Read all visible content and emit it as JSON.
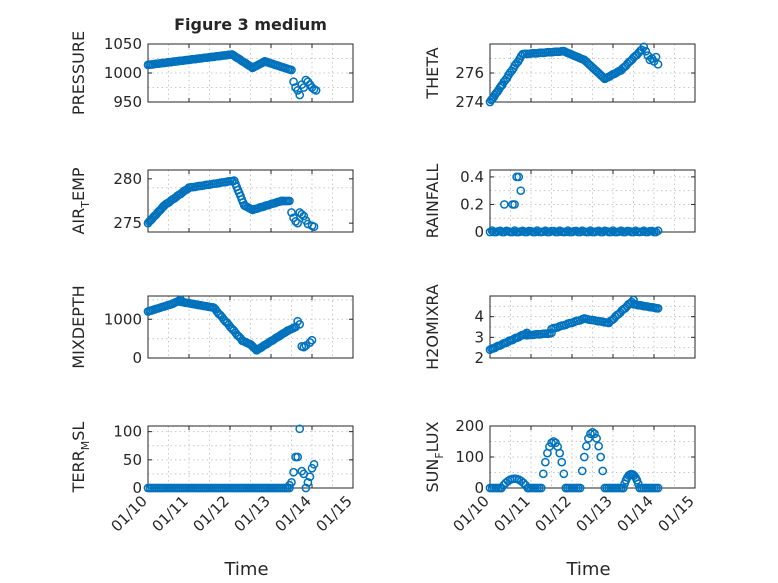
{
  "figure": {
    "title": "Figure 3 medium",
    "bottom_xlabel": "Time",
    "marker_color": "#0072BD"
  },
  "chart_data": [
    {
      "id": "pressure",
      "type": "scatter",
      "title": "Figure 3 medium",
      "ylabel": "PRESSURE",
      "ylabel_sub": null,
      "xlim": [
        0,
        5
      ],
      "ylim": [
        950,
        1050
      ],
      "yticks": [
        950,
        1000,
        1050
      ],
      "grid": true,
      "xticklabels_visible": false,
      "series": [
        {
          "segments": [
            {
              "x0": 0.0,
              "x1": 2.05,
              "y0": 1014,
              "y1": 1032,
              "step": 0.04
            },
            {
              "x0": 2.05,
              "x1": 2.55,
              "y0": 1032,
              "y1": 1009,
              "step": 0.04
            },
            {
              "x0": 2.55,
              "x1": 2.85,
              "y0": 1009,
              "y1": 1020,
              "step": 0.04
            },
            {
              "x0": 2.85,
              "x1": 3.5,
              "y0": 1020,
              "y1": 1005,
              "step": 0.04
            }
          ],
          "points": [
            [
              3.55,
              985
            ],
            [
              3.6,
              975
            ],
            [
              3.65,
              970
            ],
            [
              3.7,
              962
            ],
            [
              3.75,
              980
            ],
            [
              3.8,
              975
            ],
            [
              3.85,
              988
            ],
            [
              3.9,
              985
            ],
            [
              3.95,
              980
            ],
            [
              4.0,
              975
            ],
            [
              4.05,
              972
            ],
            [
              4.1,
              970
            ]
          ]
        }
      ]
    },
    {
      "id": "theta",
      "type": "scatter",
      "ylabel": "THETA",
      "ylabel_sub": null,
      "xlim": [
        0,
        5
      ],
      "ylim": [
        274,
        278
      ],
      "yticks": [
        274,
        276
      ],
      "grid": true,
      "xticklabels_visible": false,
      "series": [
        {
          "segments": [
            {
              "x0": 0.0,
              "x1": 0.3,
              "y0": 274.0,
              "y1": 275.2,
              "step": 0.03
            },
            {
              "x0": 0.3,
              "x1": 0.8,
              "y0": 275.2,
              "y1": 277.3,
              "step": 0.04
            },
            {
              "x0": 0.8,
              "x1": 1.8,
              "y0": 277.3,
              "y1": 277.5,
              "step": 0.05
            },
            {
              "x0": 1.8,
              "x1": 2.3,
              "y0": 277.5,
              "y1": 276.9,
              "step": 0.04
            },
            {
              "x0": 2.3,
              "x1": 2.8,
              "y0": 276.9,
              "y1": 275.6,
              "step": 0.04
            },
            {
              "x0": 2.8,
              "x1": 3.2,
              "y0": 275.6,
              "y1": 276.2,
              "step": 0.04
            },
            {
              "x0": 3.2,
              "x1": 3.7,
              "y0": 276.2,
              "y1": 277.6,
              "step": 0.04
            }
          ],
          "points": [
            [
              3.75,
              277.8
            ],
            [
              3.8,
              277.5
            ],
            [
              3.85,
              277.2
            ],
            [
              3.9,
              276.9
            ],
            [
              3.95,
              277.0
            ],
            [
              4.0,
              276.8
            ],
            [
              4.05,
              277.1
            ],
            [
              4.1,
              276.6
            ]
          ]
        }
      ]
    },
    {
      "id": "air_temp",
      "type": "scatter",
      "ylabel": "AIR",
      "ylabel_sub": "T",
      "ylabel_rest": "EMP",
      "xlim": [
        0,
        5
      ],
      "ylim": [
        274,
        281
      ],
      "yticks": [
        275,
        280
      ],
      "grid": true,
      "xticklabels_visible": false,
      "series": [
        {
          "segments": [
            {
              "x0": 0.0,
              "x1": 0.4,
              "y0": 275.0,
              "y1": 277.0,
              "step": 0.03
            },
            {
              "x0": 0.4,
              "x1": 1.0,
              "y0": 277.0,
              "y1": 279.0,
              "step": 0.04
            },
            {
              "x0": 1.0,
              "x1": 2.1,
              "y0": 279.0,
              "y1": 279.8,
              "step": 0.05
            },
            {
              "x0": 2.1,
              "x1": 2.35,
              "y0": 279.8,
              "y1": 277.0,
              "step": 0.03
            },
            {
              "x0": 2.35,
              "x1": 2.55,
              "y0": 277.0,
              "y1": 276.5,
              "step": 0.04
            },
            {
              "x0": 2.55,
              "x1": 3.25,
              "y0": 276.5,
              "y1": 277.5,
              "step": 0.04
            },
            {
              "x0": 3.25,
              "x1": 3.45,
              "y0": 277.5,
              "y1": 277.5,
              "step": 0.04
            }
          ],
          "points": [
            [
              3.5,
              276.2
            ],
            [
              3.55,
              275.6
            ],
            [
              3.6,
              275.2
            ],
            [
              3.65,
              275.0
            ],
            [
              3.7,
              276.2
            ],
            [
              3.75,
              276.0
            ],
            [
              3.8,
              275.8
            ],
            [
              3.85,
              275.3
            ],
            [
              3.9,
              274.9
            ],
            [
              4.0,
              274.7
            ],
            [
              4.05,
              274.6
            ]
          ]
        }
      ]
    },
    {
      "id": "rainfall",
      "type": "scatter",
      "ylabel": "RAINFALL",
      "ylabel_sub": null,
      "xlim": [
        0,
        5
      ],
      "ylim": [
        0,
        0.45
      ],
      "yticks": [
        0,
        0.2,
        0.4
      ],
      "grid": true,
      "xticklabels_visible": false,
      "series": [
        {
          "segments": [
            {
              "x0": 0.0,
              "x1": 4.1,
              "y0": 0.0,
              "y1": 0.0,
              "step": 0.05
            }
          ],
          "points": [
            [
              0.35,
              0.2
            ],
            [
              0.55,
              0.2
            ],
            [
              0.6,
              0.2
            ],
            [
              0.65,
              0.4
            ],
            [
              0.7,
              0.4
            ],
            [
              0.75,
              0.3
            ]
          ]
        }
      ]
    },
    {
      "id": "mixdepth",
      "type": "scatter",
      "ylabel": "MIXDEPTH",
      "ylabel_sub": null,
      "xlim": [
        0,
        5
      ],
      "ylim": [
        0,
        1600
      ],
      "yticks": [
        0,
        1000
      ],
      "grid": true,
      "xticklabels_visible": false,
      "series": [
        {
          "segments": [
            {
              "x0": 0.0,
              "x1": 0.6,
              "y0": 1200,
              "y1": 1400,
              "step": 0.04
            },
            {
              "x0": 0.6,
              "x1": 0.8,
              "y0": 1400,
              "y1": 1500,
              "step": 0.04
            },
            {
              "x0": 0.8,
              "x1": 1.6,
              "y0": 1450,
              "y1": 1300,
              "step": 0.04
            },
            {
              "x0": 1.6,
              "x1": 2.3,
              "y0": 1300,
              "y1": 450,
              "step": 0.04
            },
            {
              "x0": 2.3,
              "x1": 2.5,
              "y0": 450,
              "y1": 350,
              "step": 0.04
            },
            {
              "x0": 2.5,
              "x1": 2.65,
              "y0": 350,
              "y1": 200,
              "step": 0.03
            },
            {
              "x0": 2.65,
              "x1": 3.4,
              "y0": 200,
              "y1": 700,
              "step": 0.04
            },
            {
              "x0": 3.4,
              "x1": 3.6,
              "y0": 700,
              "y1": 800,
              "step": 0.04
            }
          ],
          "points": [
            [
              3.65,
              950
            ],
            [
              3.7,
              870
            ],
            [
              3.75,
              300
            ],
            [
              3.8,
              280
            ],
            [
              3.85,
              320
            ],
            [
              3.95,
              400
            ],
            [
              4.0,
              460
            ]
          ]
        }
      ]
    },
    {
      "id": "h2omixra",
      "type": "scatter",
      "ylabel": "H2OMIXRA",
      "ylabel_sub": null,
      "xlim": [
        0,
        5
      ],
      "ylim": [
        2,
        5
      ],
      "yticks": [
        2,
        3,
        4
      ],
      "grid": true,
      "xticklabels_visible": false,
      "series": [
        {
          "segments": [
            {
              "x0": 0.0,
              "x1": 0.9,
              "y0": 2.4,
              "y1": 3.2,
              "step": 0.04
            },
            {
              "x0": 0.9,
              "x1": 1.5,
              "y0": 3.1,
              "y1": 3.2,
              "step": 0.05
            },
            {
              "x0": 1.5,
              "x1": 2.3,
              "y0": 3.4,
              "y1": 3.9,
              "step": 0.05
            },
            {
              "x0": 2.3,
              "x1": 2.9,
              "y0": 3.9,
              "y1": 3.7,
              "step": 0.05
            },
            {
              "x0": 2.9,
              "x1": 3.5,
              "y0": 3.7,
              "y1": 4.8,
              "step": 0.04
            },
            {
              "x0": 3.5,
              "x1": 4.1,
              "y0": 4.6,
              "y1": 4.4,
              "step": 0.04
            }
          ],
          "points": []
        }
      ]
    },
    {
      "id": "terr_msl",
      "type": "scatter",
      "ylabel": "TERR",
      "ylabel_sub": "M",
      "ylabel_rest": "SL",
      "xlim": [
        0,
        5
      ],
      "ylim": [
        0,
        110
      ],
      "yticks": [
        0,
        50,
        100
      ],
      "grid": true,
      "xticklabels_visible": true,
      "xticks": [
        0,
        1,
        2,
        3,
        4,
        5
      ],
      "xticklabels": [
        "01/10",
        "01/11",
        "01/12",
        "01/13",
        "01/14",
        "01/15"
      ],
      "xlabel": "Time",
      "series": [
        {
          "segments": [
            {
              "x0": 0.0,
              "x1": 3.45,
              "y0": 0,
              "y1": 0,
              "step": 0.05
            }
          ],
          "points": [
            [
              3.45,
              5
            ],
            [
              3.5,
              10
            ],
            [
              3.55,
              28
            ],
            [
              3.6,
              55
            ],
            [
              3.65,
              55
            ],
            [
              3.7,
              105
            ],
            [
              3.75,
              30
            ],
            [
              3.8,
              25
            ],
            [
              3.85,
              0
            ],
            [
              3.9,
              10
            ],
            [
              3.95,
              20
            ],
            [
              4.0,
              35
            ],
            [
              4.05,
              42
            ]
          ]
        }
      ]
    },
    {
      "id": "sun_flux",
      "type": "scatter",
      "ylabel": "SUN",
      "ylabel_sub": "F",
      "ylabel_rest": "LUX",
      "xlim": [
        0,
        5
      ],
      "ylim": [
        0,
        200
      ],
      "yticks": [
        0,
        100,
        200
      ],
      "grid": true,
      "xticklabels_visible": true,
      "xticks": [
        0,
        1,
        2,
        3,
        4,
        5
      ],
      "xticklabels": [
        "01/10",
        "01/11",
        "01/12",
        "01/13",
        "01/14",
        "01/15"
      ],
      "xlabel": "Time",
      "series": [
        {
          "bumps": [
            {
              "center": 0.6,
              "peak": 30,
              "half_width": 0.32
            },
            {
              "center": 1.55,
              "peak": 150,
              "half_width": 0.3
            },
            {
              "center": 2.5,
              "peak": 180,
              "half_width": 0.3
            },
            {
              "center": 3.45,
              "peak": 45,
              "half_width": 0.2
            }
          ],
          "baseline": {
            "x0": 0.0,
            "x1": 4.1,
            "value": 0,
            "step": 0.05
          }
        }
      ]
    }
  ]
}
